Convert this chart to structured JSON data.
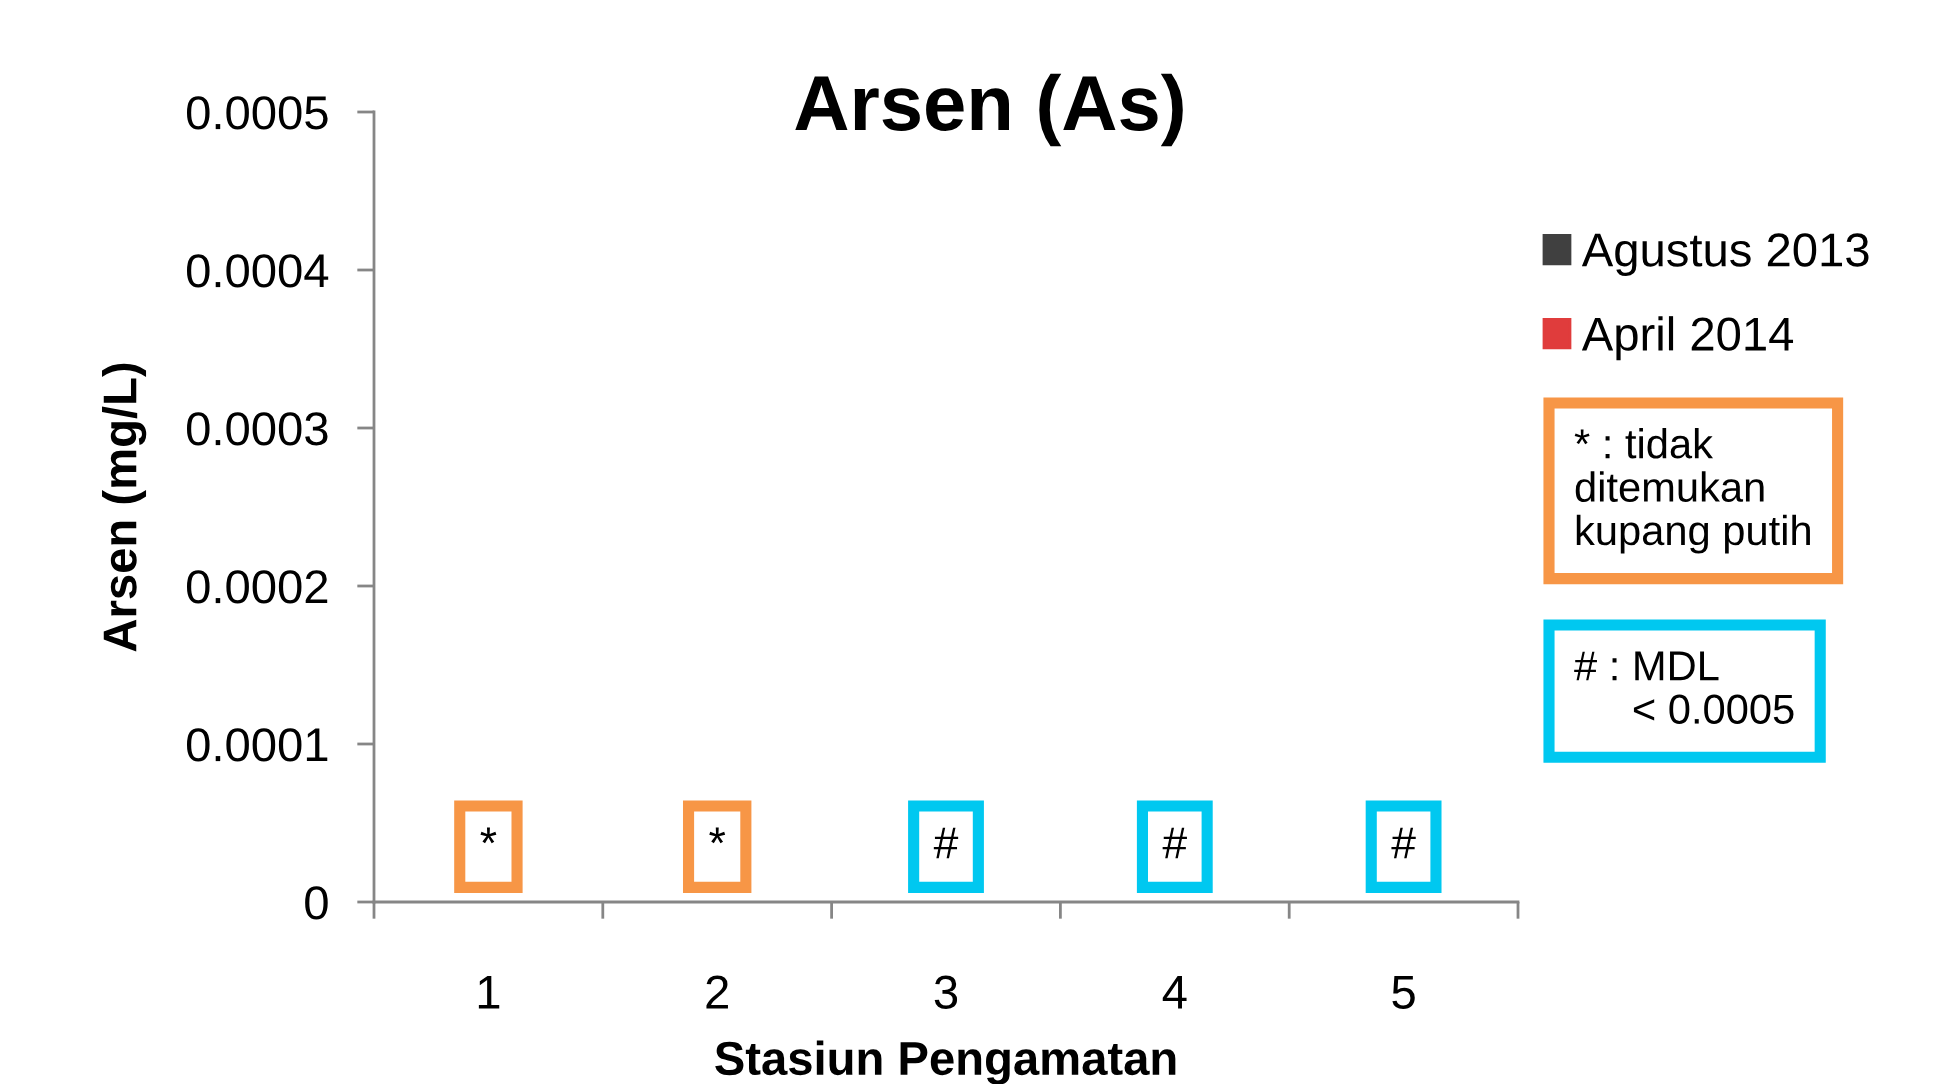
{
  "chart_data": {
    "type": "bar",
    "title": "Arsen (As)",
    "xlabel": "Stasiun Pengamatan",
    "ylabel": "Arsen (mg/L)",
    "categories": [
      "1",
      "2",
      "3",
      "4",
      "5"
    ],
    "series": [
      {
        "name": "Agustus 2013",
        "color": "#404040",
        "values": [
          null,
          null,
          null,
          null,
          null
        ]
      },
      {
        "name": "April 2014",
        "color": "#e03c3c",
        "values": [
          null,
          null,
          null,
          null,
          null
        ]
      }
    ],
    "ylim": [
      0,
      0.0005
    ],
    "yticks": [
      0,
      0.0001,
      0.0002,
      0.0003,
      0.0004,
      0.0005
    ],
    "legend": "right",
    "grid": false,
    "annotations": [
      {
        "text": "*",
        "x": "1",
        "y": 3.5e-05
      },
      {
        "text": "*",
        "x": "2",
        "y": 3.5e-05
      },
      {
        "text": "#",
        "x": "3",
        "y": 3.5e-05
      },
      {
        "text": "#",
        "x": "4",
        "y": 3.5e-05
      },
      {
        "text": "#",
        "x": "5",
        "y": 3.5e-05
      },
      "* : tidak\nditemukan\nkupang putih",
      "# : MDL\n     < 0.0005"
    ]
  }
}
